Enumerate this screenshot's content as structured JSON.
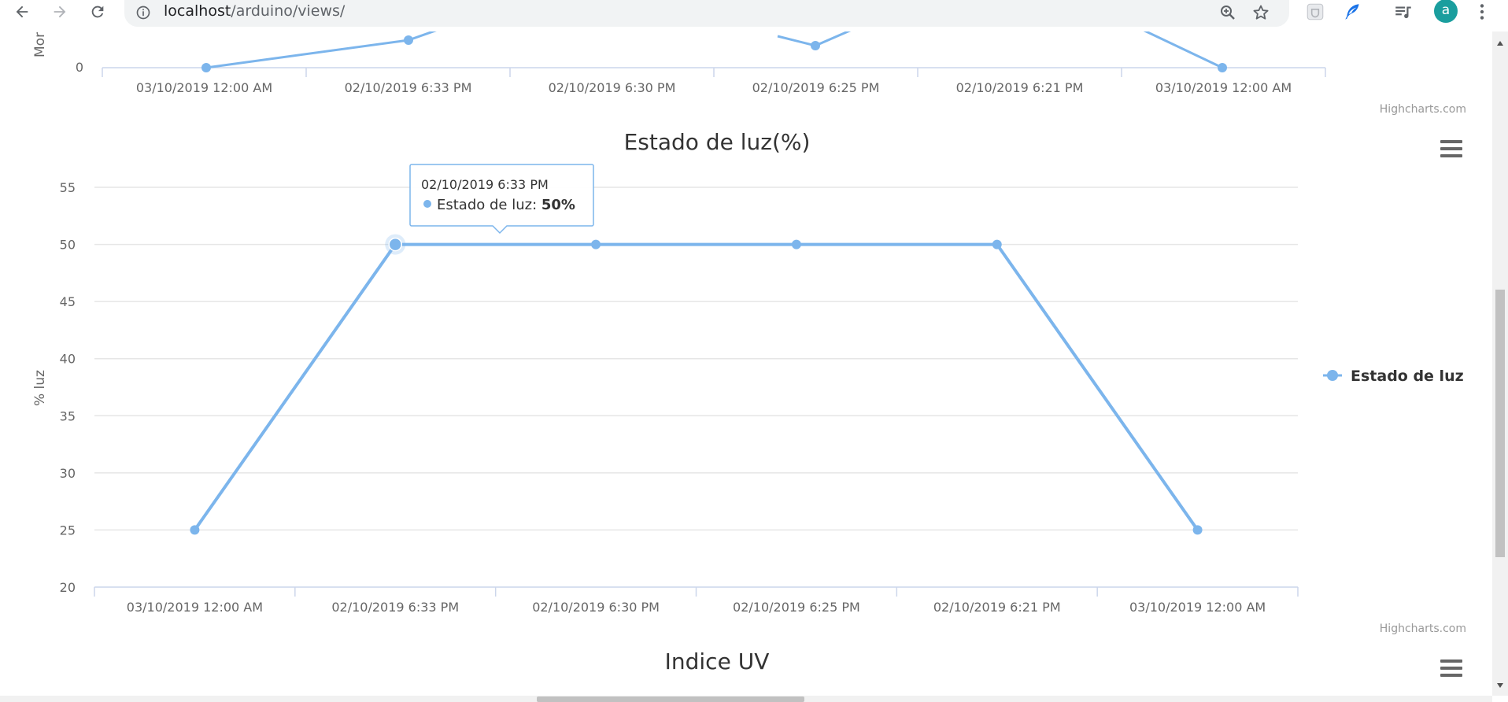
{
  "browser": {
    "url_host": "localhost",
    "url_path": "/arduino/views/",
    "avatar_letter": "a"
  },
  "top_chart": {
    "y_axis_label_partial": "Mor",
    "y_tick_visible": "0",
    "categories": [
      "03/10/2019 12:00 AM",
      "02/10/2019 6:33 PM",
      "02/10/2019 6:30 PM",
      "02/10/2019 6:25 PM",
      "02/10/2019 6:21 PM",
      "03/10/2019 12:00 AM"
    ],
    "credits": "Highcharts.com"
  },
  "chart_data": {
    "type": "line",
    "title": "Estado de luz(%)",
    "ylabel": "% luz",
    "xlabel": "",
    "ylim": [
      20,
      55
    ],
    "yticks": [
      20,
      25,
      30,
      35,
      40,
      45,
      50,
      55
    ],
    "categories": [
      "03/10/2019 12:00 AM",
      "02/10/2019 6:33 PM",
      "02/10/2019 6:30 PM",
      "02/10/2019 6:25 PM",
      "02/10/2019 6:21 PM",
      "03/10/2019 12:00 AM"
    ],
    "series": [
      {
        "name": "Estado de luz",
        "values": [
          25,
          50,
          50,
          50,
          50,
          25
        ],
        "color": "#7cb5ec"
      }
    ],
    "legend": "right",
    "grid": true,
    "credits": "Highcharts.com",
    "tooltip": {
      "header": "02/10/2019 6:33 PM",
      "series_label": "Estado de luz: ",
      "value": "50%"
    }
  },
  "next_chart": {
    "title": "Indice UV"
  },
  "icons": {
    "back": "back-arrow-icon",
    "forward": "forward-arrow-icon",
    "reload": "reload-icon",
    "info": "info-icon",
    "zoom": "zoom-icon",
    "bookmark": "star-icon",
    "menu": "hamburger-menu-icon"
  }
}
